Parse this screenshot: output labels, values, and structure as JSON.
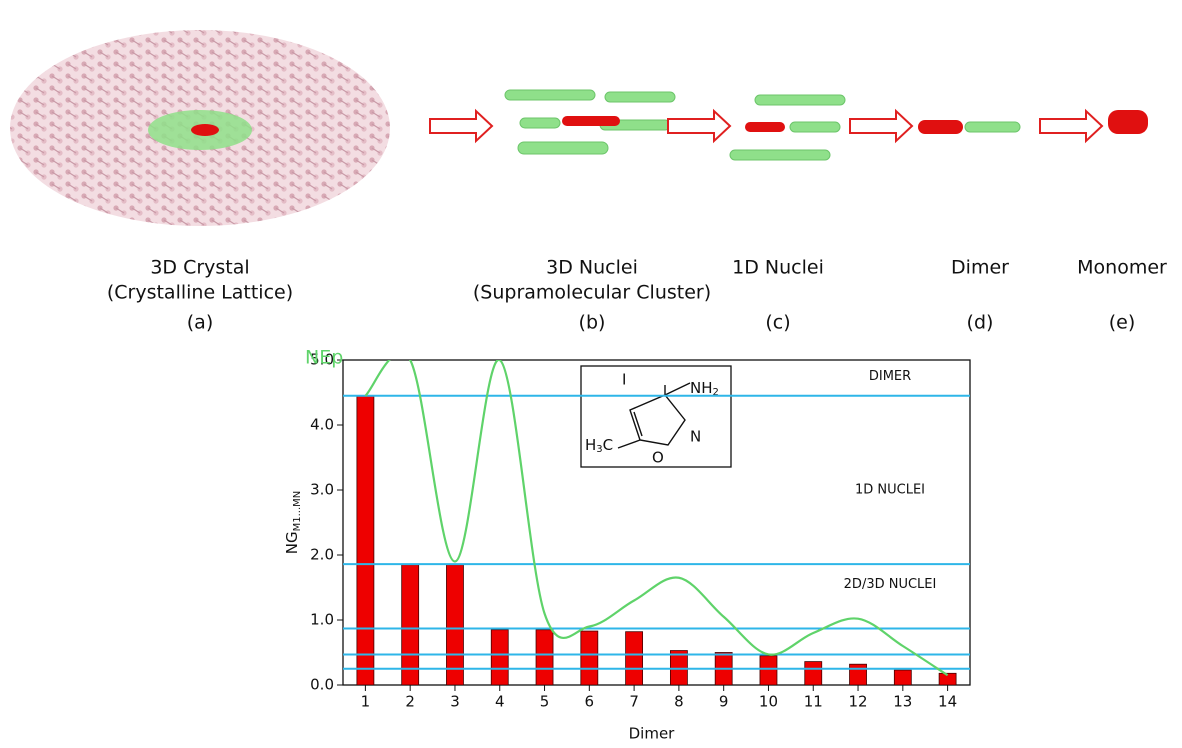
{
  "panels": [
    {
      "title": "3D Crystal",
      "subtitle": "(Crystalline Lattice)",
      "tag": "(a)"
    },
    {
      "title": "3D Nuclei",
      "subtitle": "(Supramolecular Cluster)",
      "tag": "(b)"
    },
    {
      "title": "1D Nuclei",
      "tag": "(c)"
    },
    {
      "title": "Dimer",
      "tag": "(d)"
    },
    {
      "title": "Monomer",
      "tag": "(e)"
    }
  ],
  "inset": {
    "iodo": "I",
    "amine": "NH",
    "amine_sub": "2",
    "methyl_h": "H",
    "methyl_sub": "3",
    "methyl_c": "C",
    "nitrogen": "N",
    "oxygen": "O"
  },
  "chart_data": {
    "type": "bar",
    "xlabel": "Dimer",
    "ylabel": "NG",
    "ylabel_sub": "M1...MN",
    "categories": [
      "1",
      "2",
      "3",
      "4",
      "5",
      "6",
      "7",
      "8",
      "9",
      "10",
      "11",
      "12",
      "13",
      "14"
    ],
    "series": [
      {
        "name": "NG",
        "type": "bar",
        "color": "#ee0000",
        "values": [
          4.45,
          1.85,
          1.85,
          0.85,
          0.85,
          0.83,
          0.82,
          0.53,
          0.5,
          0.45,
          0.36,
          0.32,
          0.23,
          0.18
        ]
      },
      {
        "name": "NEp",
        "type": "line",
        "color": "#5fd36a",
        "values": [
          4.45,
          5.0,
          1.9,
          5.0,
          1.1,
          0.9,
          1.3,
          1.65,
          1.05,
          0.47,
          0.8,
          1.02,
          0.6,
          0.15
        ]
      }
    ],
    "thresholds": [
      4.45,
      1.86,
      0.87,
      0.47,
      0.25
    ],
    "threshold_color": "#2eb6e8",
    "regions": [
      "DIMER",
      "1D NUCLEI",
      "2D/3D NUCLEI"
    ],
    "region_values": [
      4.75,
      3.0,
      1.55
    ],
    "ylim": [
      0,
      5
    ],
    "yticks": [
      {
        "value": 0,
        "label": "0.0"
      },
      {
        "value": 1,
        "label": "1.0"
      },
      {
        "value": 2,
        "label": "2.0"
      },
      {
        "value": 3,
        "label": "3.0"
      },
      {
        "value": 4,
        "label": "4.0"
      },
      {
        "value": 5,
        "label": "5.0"
      }
    ]
  }
}
